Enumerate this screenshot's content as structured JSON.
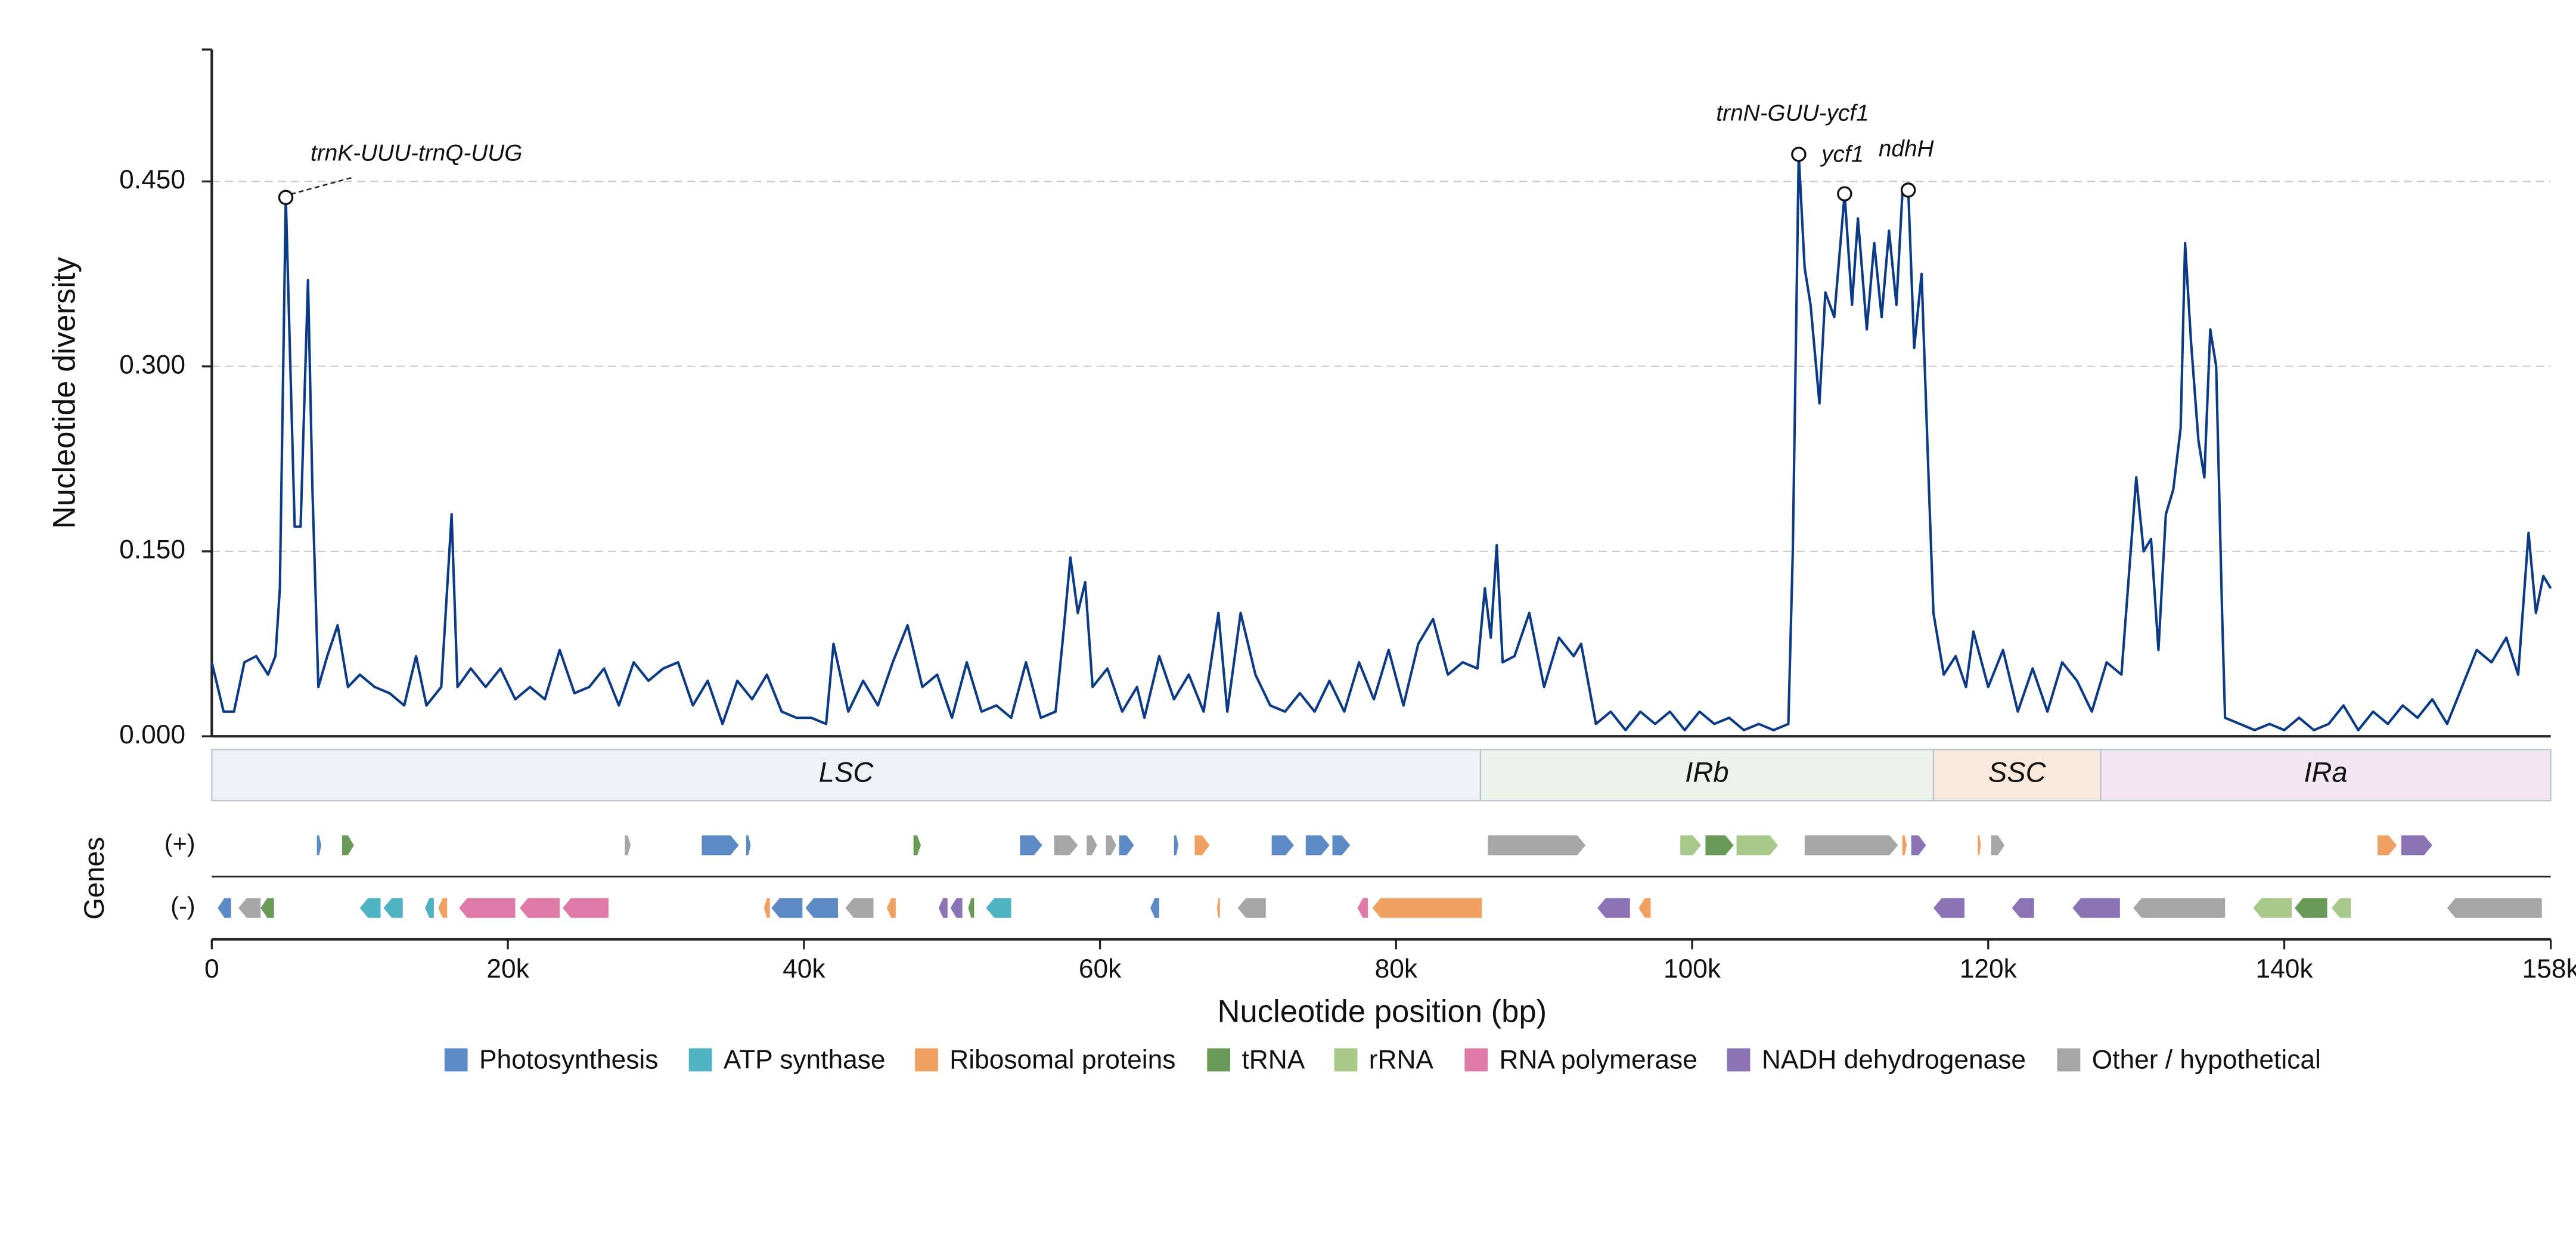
{
  "chart_data": {
    "type": "line",
    "xlabel": "Nucleotide position (bp)",
    "ylabel": "Nucleotide diversity",
    "color": "#0b3a86",
    "grid": true,
    "xlim": [
      0,
      158000
    ],
    "ylim": [
      0,
      0.557
    ],
    "xticks": [
      0,
      {
        "value": 20000,
        "label": "20k"
      },
      {
        "value": 40000,
        "label": "40k"
      },
      {
        "value": 60000,
        "label": "60k"
      },
      {
        "value": 80000,
        "label": "80k"
      },
      {
        "value": 100000,
        "label": "100k"
      },
      {
        "value": 120000,
        "label": "120k"
      },
      {
        "value": 140000,
        "label": "140k"
      },
      {
        "value": 158000,
        "label": "158k"
      }
    ],
    "yticks": [
      {
        "value": 0,
        "label": "0.000"
      },
      {
        "value": 0.15,
        "label": "0.150"
      },
      {
        "value": 0.3,
        "label": "0.300"
      },
      {
        "value": 0.45,
        "label": "0.450"
      }
    ],
    "x": [
      0,
      800,
      1500,
      2200,
      3000,
      3800,
      4300,
      4600,
      5000,
      5600,
      6000,
      6500,
      6800,
      7200,
      7800,
      8500,
      9200,
      10000,
      11000,
      12000,
      13000,
      13800,
      14500,
      15500,
      16200,
      16600,
      17500,
      18500,
      19500,
      20500,
      21500,
      22500,
      23500,
      24500,
      25500,
      26500,
      27500,
      28500,
      29500,
      30500,
      31500,
      32500,
      33500,
      34500,
      35500,
      36500,
      37500,
      38500,
      39500,
      40500,
      41500,
      42000,
      43000,
      44000,
      45000,
      46000,
      47000,
      48000,
      49000,
      50000,
      51000,
      52000,
      53000,
      54000,
      55000,
      56000,
      57000,
      57500,
      58000,
      58500,
      59000,
      59500,
      60500,
      61500,
      62500,
      63000,
      64000,
      65000,
      66000,
      67000,
      68000,
      68600,
      69500,
      70500,
      71500,
      72500,
      73500,
      74500,
      75500,
      76500,
      77500,
      78500,
      79500,
      80500,
      81500,
      82500,
      83500,
      84500,
      85500,
      86000,
      86400,
      86800,
      87200,
      88000,
      89000,
      90000,
      91000,
      92000,
      92500,
      93500,
      94500,
      95500,
      96500,
      97500,
      98500,
      99500,
      100500,
      101500,
      102500,
      103500,
      104500,
      105500,
      106500,
      106800,
      107200,
      107600,
      108000,
      108600,
      109000,
      109600,
      110300,
      110800,
      111200,
      111800,
      112300,
      112800,
      113300,
      113800,
      114200,
      114600,
      115000,
      115500,
      116000,
      116300,
      117000,
      117800,
      118500,
      119000,
      120000,
      121000,
      122000,
      123000,
      124000,
      125000,
      126000,
      127000,
      128000,
      129000,
      130000,
      130500,
      131000,
      131500,
      132000,
      132500,
      133000,
      133300,
      133700,
      134200,
      134600,
      135000,
      135400,
      135800,
      136000,
      137000,
      138000,
      139000,
      140000,
      141000,
      142000,
      143000,
      144000,
      145000,
      146000,
      147000,
      148000,
      149000,
      150000,
      151000,
      152000,
      153000,
      154000,
      155000,
      155800,
      156500,
      157000,
      157500,
      158000
    ],
    "values": [
      0.06,
      0.02,
      0.02,
      0.06,
      0.065,
      0.05,
      0.065,
      0.12,
      0.437,
      0.17,
      0.17,
      0.37,
      0.2,
      0.04,
      0.065,
      0.09,
      0.04,
      0.05,
      0.04,
      0.035,
      0.025,
      0.065,
      0.025,
      0.04,
      0.18,
      0.04,
      0.055,
      0.04,
      0.055,
      0.03,
      0.04,
      0.03,
      0.07,
      0.035,
      0.04,
      0.055,
      0.025,
      0.06,
      0.045,
      0.055,
      0.06,
      0.025,
      0.045,
      0.01,
      0.045,
      0.03,
      0.05,
      0.02,
      0.015,
      0.015,
      0.01,
      0.075,
      0.02,
      0.045,
      0.025,
      0.06,
      0.09,
      0.04,
      0.05,
      0.015,
      0.06,
      0.02,
      0.025,
      0.015,
      0.06,
      0.015,
      0.02,
      0.08,
      0.145,
      0.1,
      0.125,
      0.04,
      0.055,
      0.02,
      0.04,
      0.015,
      0.065,
      0.03,
      0.05,
      0.02,
      0.1,
      0.02,
      0.1,
      0.05,
      0.025,
      0.02,
      0.035,
      0.02,
      0.045,
      0.02,
      0.06,
      0.03,
      0.07,
      0.025,
      0.075,
      0.095,
      0.05,
      0.06,
      0.055,
      0.12,
      0.08,
      0.155,
      0.06,
      0.065,
      0.1,
      0.04,
      0.08,
      0.065,
      0.075,
      0.01,
      0.02,
      0.005,
      0.02,
      0.01,
      0.02,
      0.005,
      0.02,
      0.01,
      0.015,
      0.005,
      0.01,
      0.005,
      0.01,
      0.15,
      0.472,
      0.38,
      0.35,
      0.27,
      0.36,
      0.34,
      0.44,
      0.35,
      0.42,
      0.33,
      0.4,
      0.34,
      0.41,
      0.35,
      0.44,
      0.443,
      0.315,
      0.375,
      0.2,
      0.1,
      0.05,
      0.065,
      0.04,
      0.085,
      0.04,
      0.07,
      0.02,
      0.055,
      0.02,
      0.06,
      0.045,
      0.02,
      0.06,
      0.05,
      0.21,
      0.15,
      0.16,
      0.07,
      0.18,
      0.2,
      0.25,
      0.4,
      0.32,
      0.24,
      0.21,
      0.33,
      0.3,
      0.1,
      0.015,
      0.01,
      0.005,
      0.01,
      0.005,
      0.015,
      0.005,
      0.01,
      0.025,
      0.005,
      0.02,
      0.01,
      0.025,
      0.015,
      0.03,
      0.01,
      0.04,
      0.07,
      0.06,
      0.08,
      0.05,
      0.165,
      0.1,
      0.13,
      0.12
    ],
    "annotations": [
      {
        "text": "trnK-UUU-trnQ-UUG",
        "x": 5000,
        "y": 0.437
      },
      {
        "text": "trnN-GUU-ycf1",
        "x": 107200,
        "y": 0.472
      },
      {
        "text": "ycf1",
        "x": 110300,
        "y": 0.44
      },
      {
        "text": "ndhH",
        "x": 114600,
        "y": 0.443
      }
    ],
    "regions": [
      {
        "name": "LSC",
        "start": 0,
        "end": 85700,
        "color": "#eef2f6"
      },
      {
        "name": "IRb",
        "start": 85700,
        "end": 116300,
        "color": "#edf3ec"
      },
      {
        "name": "SSC",
        "start": 116300,
        "end": 127600,
        "color": "#f8e9dc"
      },
      {
        "name": "IRa",
        "start": 127600,
        "end": 158000,
        "color": "#f1e6f1"
      }
    ],
    "tracks_label": "Genes",
    "gene_categories": [
      {
        "name": "Photosynthesis",
        "color": "#5b8ac4"
      },
      {
        "name": "ATP synthase",
        "color": "#4fb3c4"
      },
      {
        "name": "Ribosomal proteins",
        "color": "#f0a060"
      },
      {
        "name": "tRNA",
        "color": "#6a9a58"
      },
      {
        "name": "rRNA",
        "color": "#a8c98a"
      },
      {
        "name": "RNA polymerase",
        "color": "#e07aa8"
      },
      {
        "name": "NADH dehydrogenase",
        "color": "#8c73b5"
      },
      {
        "name": "Other / hypothetical",
        "color": "#a6a6a6"
      }
    ],
    "tracks": [
      {
        "label": "(+)",
        "genes": [
          {
            "start": 7100,
            "end": 7400,
            "category": "Photosynthesis"
          },
          {
            "start": 8800,
            "end": 9600,
            "category": "tRNA"
          },
          {
            "start": 27900,
            "end": 28300,
            "category": "Other / hypothetical"
          },
          {
            "start": 33100,
            "end": 35600,
            "category": "Photosynthesis"
          },
          {
            "start": 36100,
            "end": 36400,
            "category": "Photosynthesis"
          },
          {
            "start": 47400,
            "end": 47900,
            "category": "tRNA"
          },
          {
            "start": 54600,
            "end": 56100,
            "category": "Photosynthesis"
          },
          {
            "start": 56900,
            "end": 58500,
            "category": "Other / hypothetical"
          },
          {
            "start": 59100,
            "end": 59800,
            "category": "Other / hypothetical"
          },
          {
            "start": 60400,
            "end": 61100,
            "category": "Other / hypothetical"
          },
          {
            "start": 61300,
            "end": 62300,
            "category": "Photosynthesis"
          },
          {
            "start": 65000,
            "end": 65300,
            "category": "Photosynthesis"
          },
          {
            "start": 66400,
            "end": 67400,
            "category": "Ribosomal proteins"
          },
          {
            "start": 71600,
            "end": 73100,
            "category": "Photosynthesis"
          },
          {
            "start": 73900,
            "end": 75500,
            "category": "Photosynthesis"
          },
          {
            "start": 75700,
            "end": 76900,
            "category": "Photosynthesis"
          },
          {
            "start": 86200,
            "end": 92800,
            "category": "Other / hypothetical"
          },
          {
            "start": 99200,
            "end": 100600,
            "category": "rRNA"
          },
          {
            "start": 100900,
            "end": 102800,
            "category": "tRNA"
          },
          {
            "start": 103000,
            "end": 105800,
            "category": "rRNA"
          },
          {
            "start": 107600,
            "end": 113900,
            "category": "Other / hypothetical"
          },
          {
            "start": 114200,
            "end": 114500,
            "category": "Ribosomal proteins"
          },
          {
            "start": 114800,
            "end": 115800,
            "category": "NADH dehydrogenase"
          },
          {
            "start": 119300,
            "end": 119500,
            "category": "Ribosomal proteins"
          },
          {
            "start": 120200,
            "end": 121100,
            "category": "Other / hypothetical"
          },
          {
            "start": 146300,
            "end": 147600,
            "category": "Ribosomal proteins"
          },
          {
            "start": 147900,
            "end": 150000,
            "category": "NADH dehydrogenase"
          }
        ]
      },
      {
        "label": "(-)",
        "genes": [
          {
            "start": 400,
            "end": 1300,
            "category": "Photosynthesis"
          },
          {
            "start": 1800,
            "end": 3300,
            "category": "Other / hypothetical"
          },
          {
            "start": 3300,
            "end": 4200,
            "category": "tRNA"
          },
          {
            "start": 10000,
            "end": 11400,
            "category": "ATP synthase"
          },
          {
            "start": 11600,
            "end": 12900,
            "category": "ATP synthase"
          },
          {
            "start": 14400,
            "end": 15000,
            "category": "ATP synthase"
          },
          {
            "start": 15300,
            "end": 15900,
            "category": "Ribosomal proteins"
          },
          {
            "start": 16700,
            "end": 20500,
            "category": "RNA polymerase"
          },
          {
            "start": 20800,
            "end": 23500,
            "category": "RNA polymerase"
          },
          {
            "start": 23700,
            "end": 26800,
            "category": "RNA polymerase"
          },
          {
            "start": 37300,
            "end": 37700,
            "category": "Ribosomal proteins"
          },
          {
            "start": 37800,
            "end": 39900,
            "category": "Photosynthesis"
          },
          {
            "start": 40100,
            "end": 42300,
            "category": "Photosynthesis"
          },
          {
            "start": 42800,
            "end": 44700,
            "category": "Other / hypothetical"
          },
          {
            "start": 45600,
            "end": 46200,
            "category": "Ribosomal proteins"
          },
          {
            "start": 49100,
            "end": 49700,
            "category": "NADH dehydrogenase"
          },
          {
            "start": 49900,
            "end": 50700,
            "category": "NADH dehydrogenase"
          },
          {
            "start": 51100,
            "end": 51500,
            "category": "tRNA"
          },
          {
            "start": 52300,
            "end": 54000,
            "category": "ATP synthase"
          },
          {
            "start": 63400,
            "end": 64000,
            "category": "Photosynthesis"
          },
          {
            "start": 67900,
            "end": 68100,
            "category": "Ribosomal proteins"
          },
          {
            "start": 69300,
            "end": 71200,
            "category": "Other / hypothetical"
          },
          {
            "start": 77400,
            "end": 78100,
            "category": "RNA polymerase"
          },
          {
            "start": 78400,
            "end": 85800,
            "category": "Ribosomal proteins"
          },
          {
            "start": 93600,
            "end": 95800,
            "category": "NADH dehydrogenase"
          },
          {
            "start": 96400,
            "end": 97200,
            "category": "Ribosomal proteins"
          },
          {
            "start": 116300,
            "end": 118400,
            "category": "NADH dehydrogenase"
          },
          {
            "start": 121600,
            "end": 123100,
            "category": "NADH dehydrogenase"
          },
          {
            "start": 125700,
            "end": 128900,
            "category": "NADH dehydrogenase"
          },
          {
            "start": 129800,
            "end": 136000,
            "category": "Other / hypothetical"
          },
          {
            "start": 137900,
            "end": 140500,
            "category": "rRNA"
          },
          {
            "start": 140700,
            "end": 142900,
            "category": "tRNA"
          },
          {
            "start": 143200,
            "end": 144500,
            "category": "rRNA"
          },
          {
            "start": 151000,
            "end": 157400,
            "category": "Other / hypothetical"
          }
        ]
      }
    ]
  }
}
